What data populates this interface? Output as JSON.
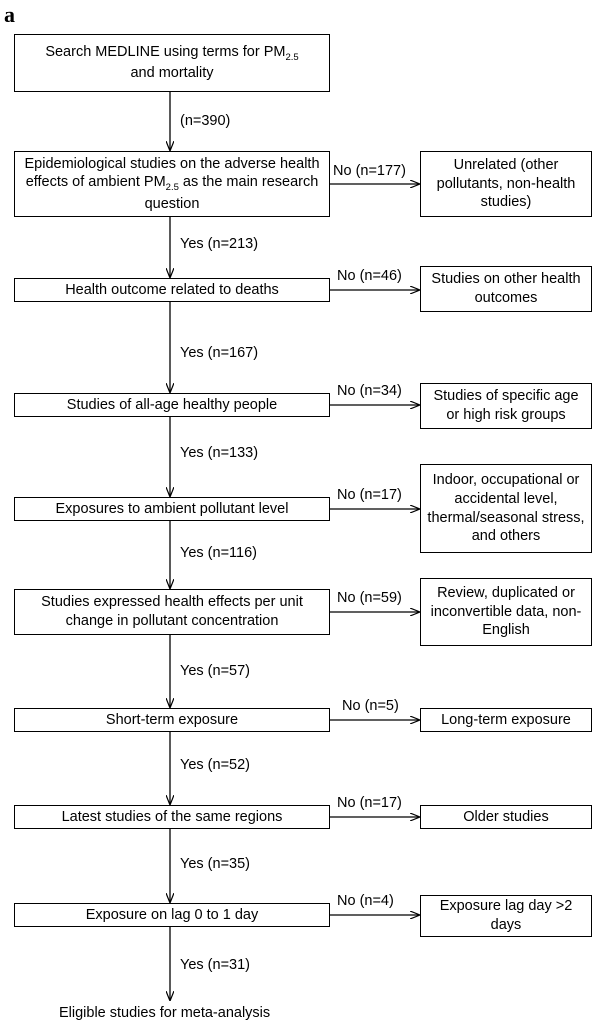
{
  "panel_label": "a",
  "main_steps": [
    {
      "line1": "Search MEDLINE using terms for PM",
      "sub": "2.5",
      "line2": "and mortality"
    },
    {
      "line1": "Epidemiological studies on the adverse health effects of ambient PM",
      "sub": "2.5",
      "line2": "as the main research question"
    },
    {
      "text": "Health outcome related to deaths"
    },
    {
      "text": "Studies of all-age healthy people"
    },
    {
      "text": "Exposures to ambient pollutant level"
    },
    {
      "text": "Studies expressed health effects per unit change in pollutant concentration"
    },
    {
      "text": "Short-term exposure"
    },
    {
      "text": "Latest studies of the same regions"
    },
    {
      "text": "Exposure on lag 0 to 1 day"
    }
  ],
  "down_labels": [
    "(n=390)",
    "Yes (n=213)",
    "Yes (n=167)",
    "Yes (n=133)",
    "Yes (n=116)",
    "Yes (n=57)",
    "Yes (n=52)",
    "Yes (n=35)",
    "Yes (n=31)"
  ],
  "exclusions": [
    {
      "label": "No (n=177)",
      "text": "Unrelated (other pollutants, non-health studies)"
    },
    {
      "label": "No (n=46)",
      "text": "Studies on other health outcomes"
    },
    {
      "label": "No (n=34)",
      "text": "Studies of specific age or high risk groups"
    },
    {
      "label": "No (n=17)",
      "text": "Indoor, occupational or accidental level, thermal/seasonal stress, and others"
    },
    {
      "label": "No (n=59)",
      "text": "Review, duplicated or inconvertible data, non-English"
    },
    {
      "label": "No (n=5)",
      "text": "Long-term exposure"
    },
    {
      "label": "No (n=17)",
      "text": "Older studies"
    },
    {
      "label": "No (n=4)",
      "text": "Exposure lag day >2 days"
    }
  ],
  "final_text": "Eligible studies for meta-analysis"
}
